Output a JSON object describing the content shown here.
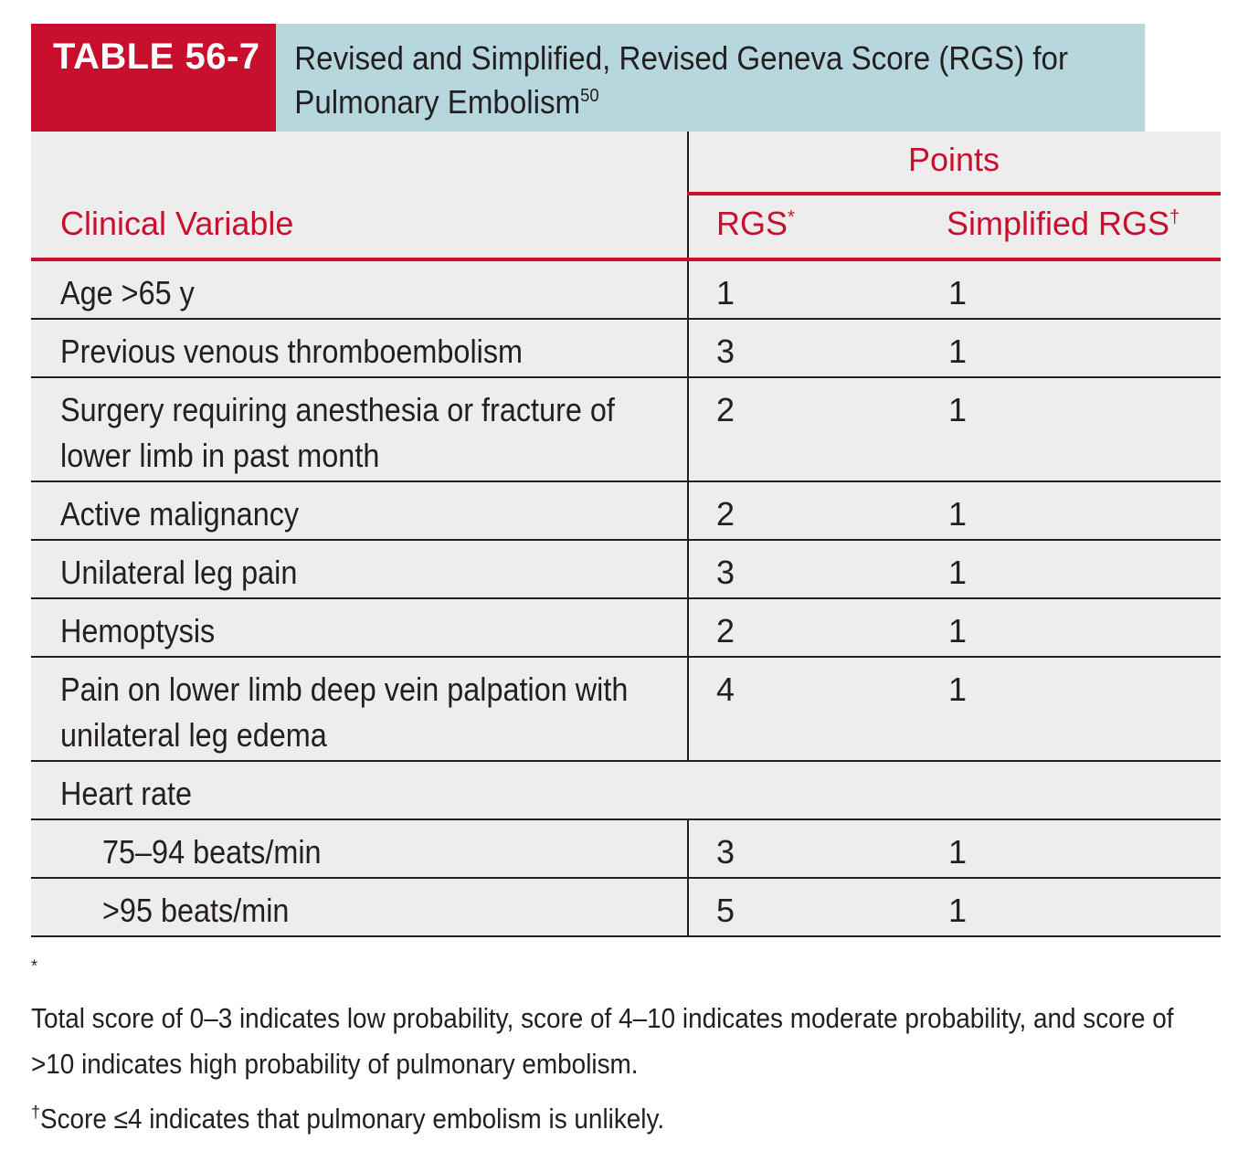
{
  "table": {
    "label": "TABLE 56-7",
    "title": "Revised and Simplified, Revised Geneva Score (RGS) for Pulmonary Embolism",
    "title_ref": "50",
    "colors": {
      "accent_red": "#c8102e",
      "title_bg": "#b7d7de",
      "body_bg": "#ededed"
    }
  },
  "header": {
    "clinical_variable": "Clinical Variable",
    "points": "Points",
    "rgs": "RGS",
    "rgs_mark": "*",
    "simplified_rgs": "Simplified RGS",
    "simplified_mark": "†"
  },
  "rows": [
    {
      "variable": "Age >65 y",
      "rgs": "1",
      "simplified": "1"
    },
    {
      "variable": "Previous venous thromboembolism",
      "rgs": "3",
      "simplified": "1"
    },
    {
      "variable": "Surgery requiring anesthesia or fracture of lower limb in past month",
      "rgs": "2",
      "simplified": "1"
    },
    {
      "variable": "Active malignancy",
      "rgs": "2",
      "simplified": "1"
    },
    {
      "variable": "Unilateral leg pain",
      "rgs": "3",
      "simplified": "1"
    },
    {
      "variable": "Hemoptysis",
      "rgs": "2",
      "simplified": "1"
    },
    {
      "variable": "Pain on lower limb deep vein palpation with unilateral leg edema",
      "rgs": "4",
      "simplified": "1"
    },
    {
      "variable": "Heart rate"
    },
    {
      "variable": "75–94 beats/min",
      "rgs": "3",
      "simplified": "1"
    },
    {
      "variable": ">95 beats/min",
      "rgs": "5",
      "simplified": "1"
    }
  ],
  "footnotes": [
    {
      "mark": "*",
      "text": "Total score of 0–3 indicates low probability, score of 4–10 indicates moderate probability, and score of >10 indicates high probability of pulmonary embolism."
    },
    {
      "mark": "†",
      "text": "Score ≤4 indicates that pulmonary embolism is unlikely."
    }
  ]
}
